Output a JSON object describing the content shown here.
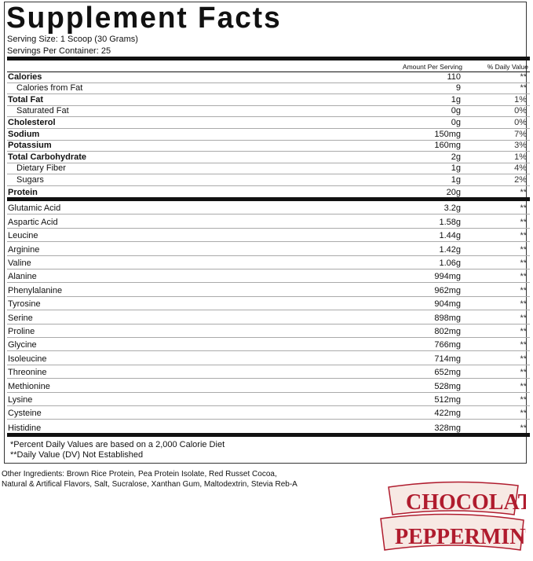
{
  "title": "Supplement Facts",
  "serving_size": "Serving Size: 1 Scoop (30 Grams)",
  "servings_per_container": "Servings Per Container: 25",
  "headers": {
    "amount": "Amount Per Serving",
    "dv": "% Daily Value"
  },
  "nutrients": [
    {
      "name": "Calories",
      "amount": "110",
      "dv": "**",
      "bold": true
    },
    {
      "name": "Calories from Fat",
      "amount": "9",
      "dv": "**",
      "indent": true
    },
    {
      "name": "Total Fat",
      "amount": "1g",
      "dv": "1%",
      "bold": true
    },
    {
      "name": "Saturated Fat",
      "amount": "0g",
      "dv": "0%",
      "indent": true
    },
    {
      "name": "Cholesterol",
      "amount": "0g",
      "dv": "0%",
      "bold": true
    },
    {
      "name": "Sodium",
      "amount": "150mg",
      "dv": "7%",
      "bold": true
    },
    {
      "name": "Potassium",
      "amount": "160mg",
      "dv": "3%",
      "bold": true
    },
    {
      "name": "Total Carbohydrate",
      "amount": "2g",
      "dv": "1%",
      "bold": true
    },
    {
      "name": "Dietary Fiber",
      "amount": "1g",
      "dv": "4%",
      "indent": true
    },
    {
      "name": "Sugars",
      "amount": "1g",
      "dv": "2%",
      "indent": true
    },
    {
      "name": "Protein",
      "amount": "20g",
      "dv": "**",
      "bold": true
    }
  ],
  "amino_acids": [
    {
      "name": "Glutamic Acid",
      "amount": "3.2g",
      "dv": "**"
    },
    {
      "name": "Aspartic Acid",
      "amount": "1.58g",
      "dv": "**"
    },
    {
      "name": "Leucine",
      "amount": "1.44g",
      "dv": "**"
    },
    {
      "name": "Arginine",
      "amount": "1.42g",
      "dv": "**"
    },
    {
      "name": "Valine",
      "amount": "1.06g",
      "dv": "**"
    },
    {
      "name": "Alanine",
      "amount": "994mg",
      "dv": "**"
    },
    {
      "name": "Phenylalanine",
      "amount": "962mg",
      "dv": "**"
    },
    {
      "name": "Tyrosine",
      "amount": "904mg",
      "dv": "**"
    },
    {
      "name": "Serine",
      "amount": "898mg",
      "dv": "**"
    },
    {
      "name": "Proline",
      "amount": "802mg",
      "dv": "**"
    },
    {
      "name": "Glycine",
      "amount": "766mg",
      "dv": "**"
    },
    {
      "name": "Isoleucine",
      "amount": "714mg",
      "dv": "**"
    },
    {
      "name": "Threonine",
      "amount": "652mg",
      "dv": "**"
    },
    {
      "name": "Methionine",
      "amount": "528mg",
      "dv": "**"
    },
    {
      "name": "Lysine",
      "amount": "512mg",
      "dv": "**"
    },
    {
      "name": "Cysteine",
      "amount": "422mg",
      "dv": "**"
    },
    {
      "name": "Histidine",
      "amount": "328mg",
      "dv": "**"
    }
  ],
  "footnotes": [
    "*Percent Daily Values are based on a 2,000 Calorie Diet",
    "**Daily Value (DV) Not Established"
  ],
  "other_ingredients": [
    "Other Ingredients: Brown Rice Protein, Pea Protein Isolate, Red Russet Cocoa,",
    "Natural & Artifical Flavors, Salt, Sucralose, Xanthan Gum, Maltodextrin, Stevia Reb-A"
  ],
  "flavor_logo": {
    "line1": "CHOCOLATE",
    "line2": "PEPPERMINT",
    "color": "#b01c2e",
    "banner": "#f7e9e4"
  }
}
